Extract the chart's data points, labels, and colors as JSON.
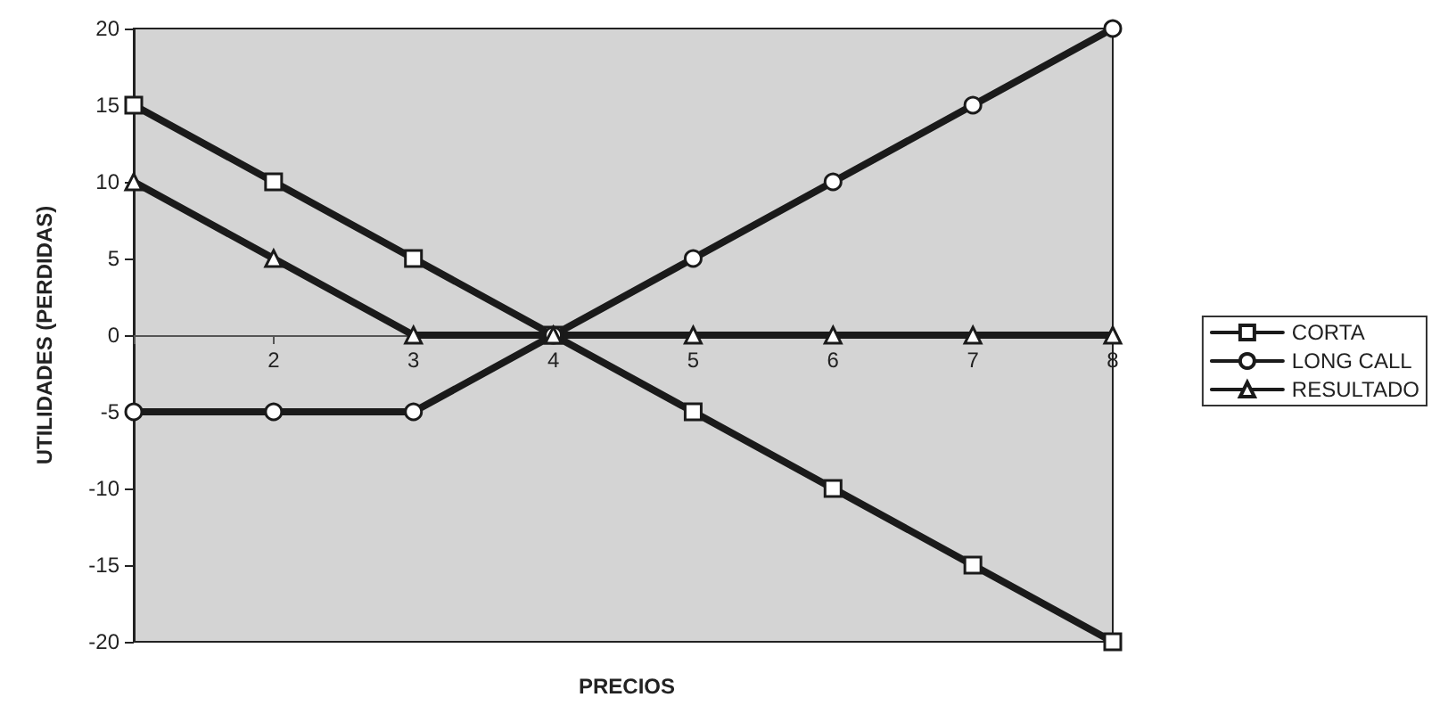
{
  "chart_data": {
    "type": "line",
    "xlabel": "PRECIOS",
    "ylabel": "UTILIDADES (PERDIDAS)",
    "categories": [
      null,
      "2",
      "3",
      "4",
      "5",
      "6",
      "7",
      "8"
    ],
    "series": [
      {
        "name": "CORTA",
        "color": "#1a1a1a",
        "marker": "square",
        "values": [
          15,
          10,
          5,
          0,
          -5,
          -10,
          -15,
          -20
        ]
      },
      {
        "name": "LONG CALL",
        "color": "#1a1a1a",
        "marker": "circle",
        "values": [
          -5,
          -5,
          -5,
          0,
          5,
          10,
          15,
          20
        ]
      },
      {
        "name": "RESULTADO",
        "color": "#1a1a1a",
        "marker": "triangle",
        "values": [
          10,
          5,
          0,
          0,
          0,
          0,
          0,
          0
        ]
      }
    ],
    "ylim": [
      -20,
      20
    ],
    "yticks": [
      -20,
      -15,
      -10,
      -5,
      0,
      5,
      10,
      15,
      20
    ],
    "legend": "right",
    "line_style": "solid"
  }
}
